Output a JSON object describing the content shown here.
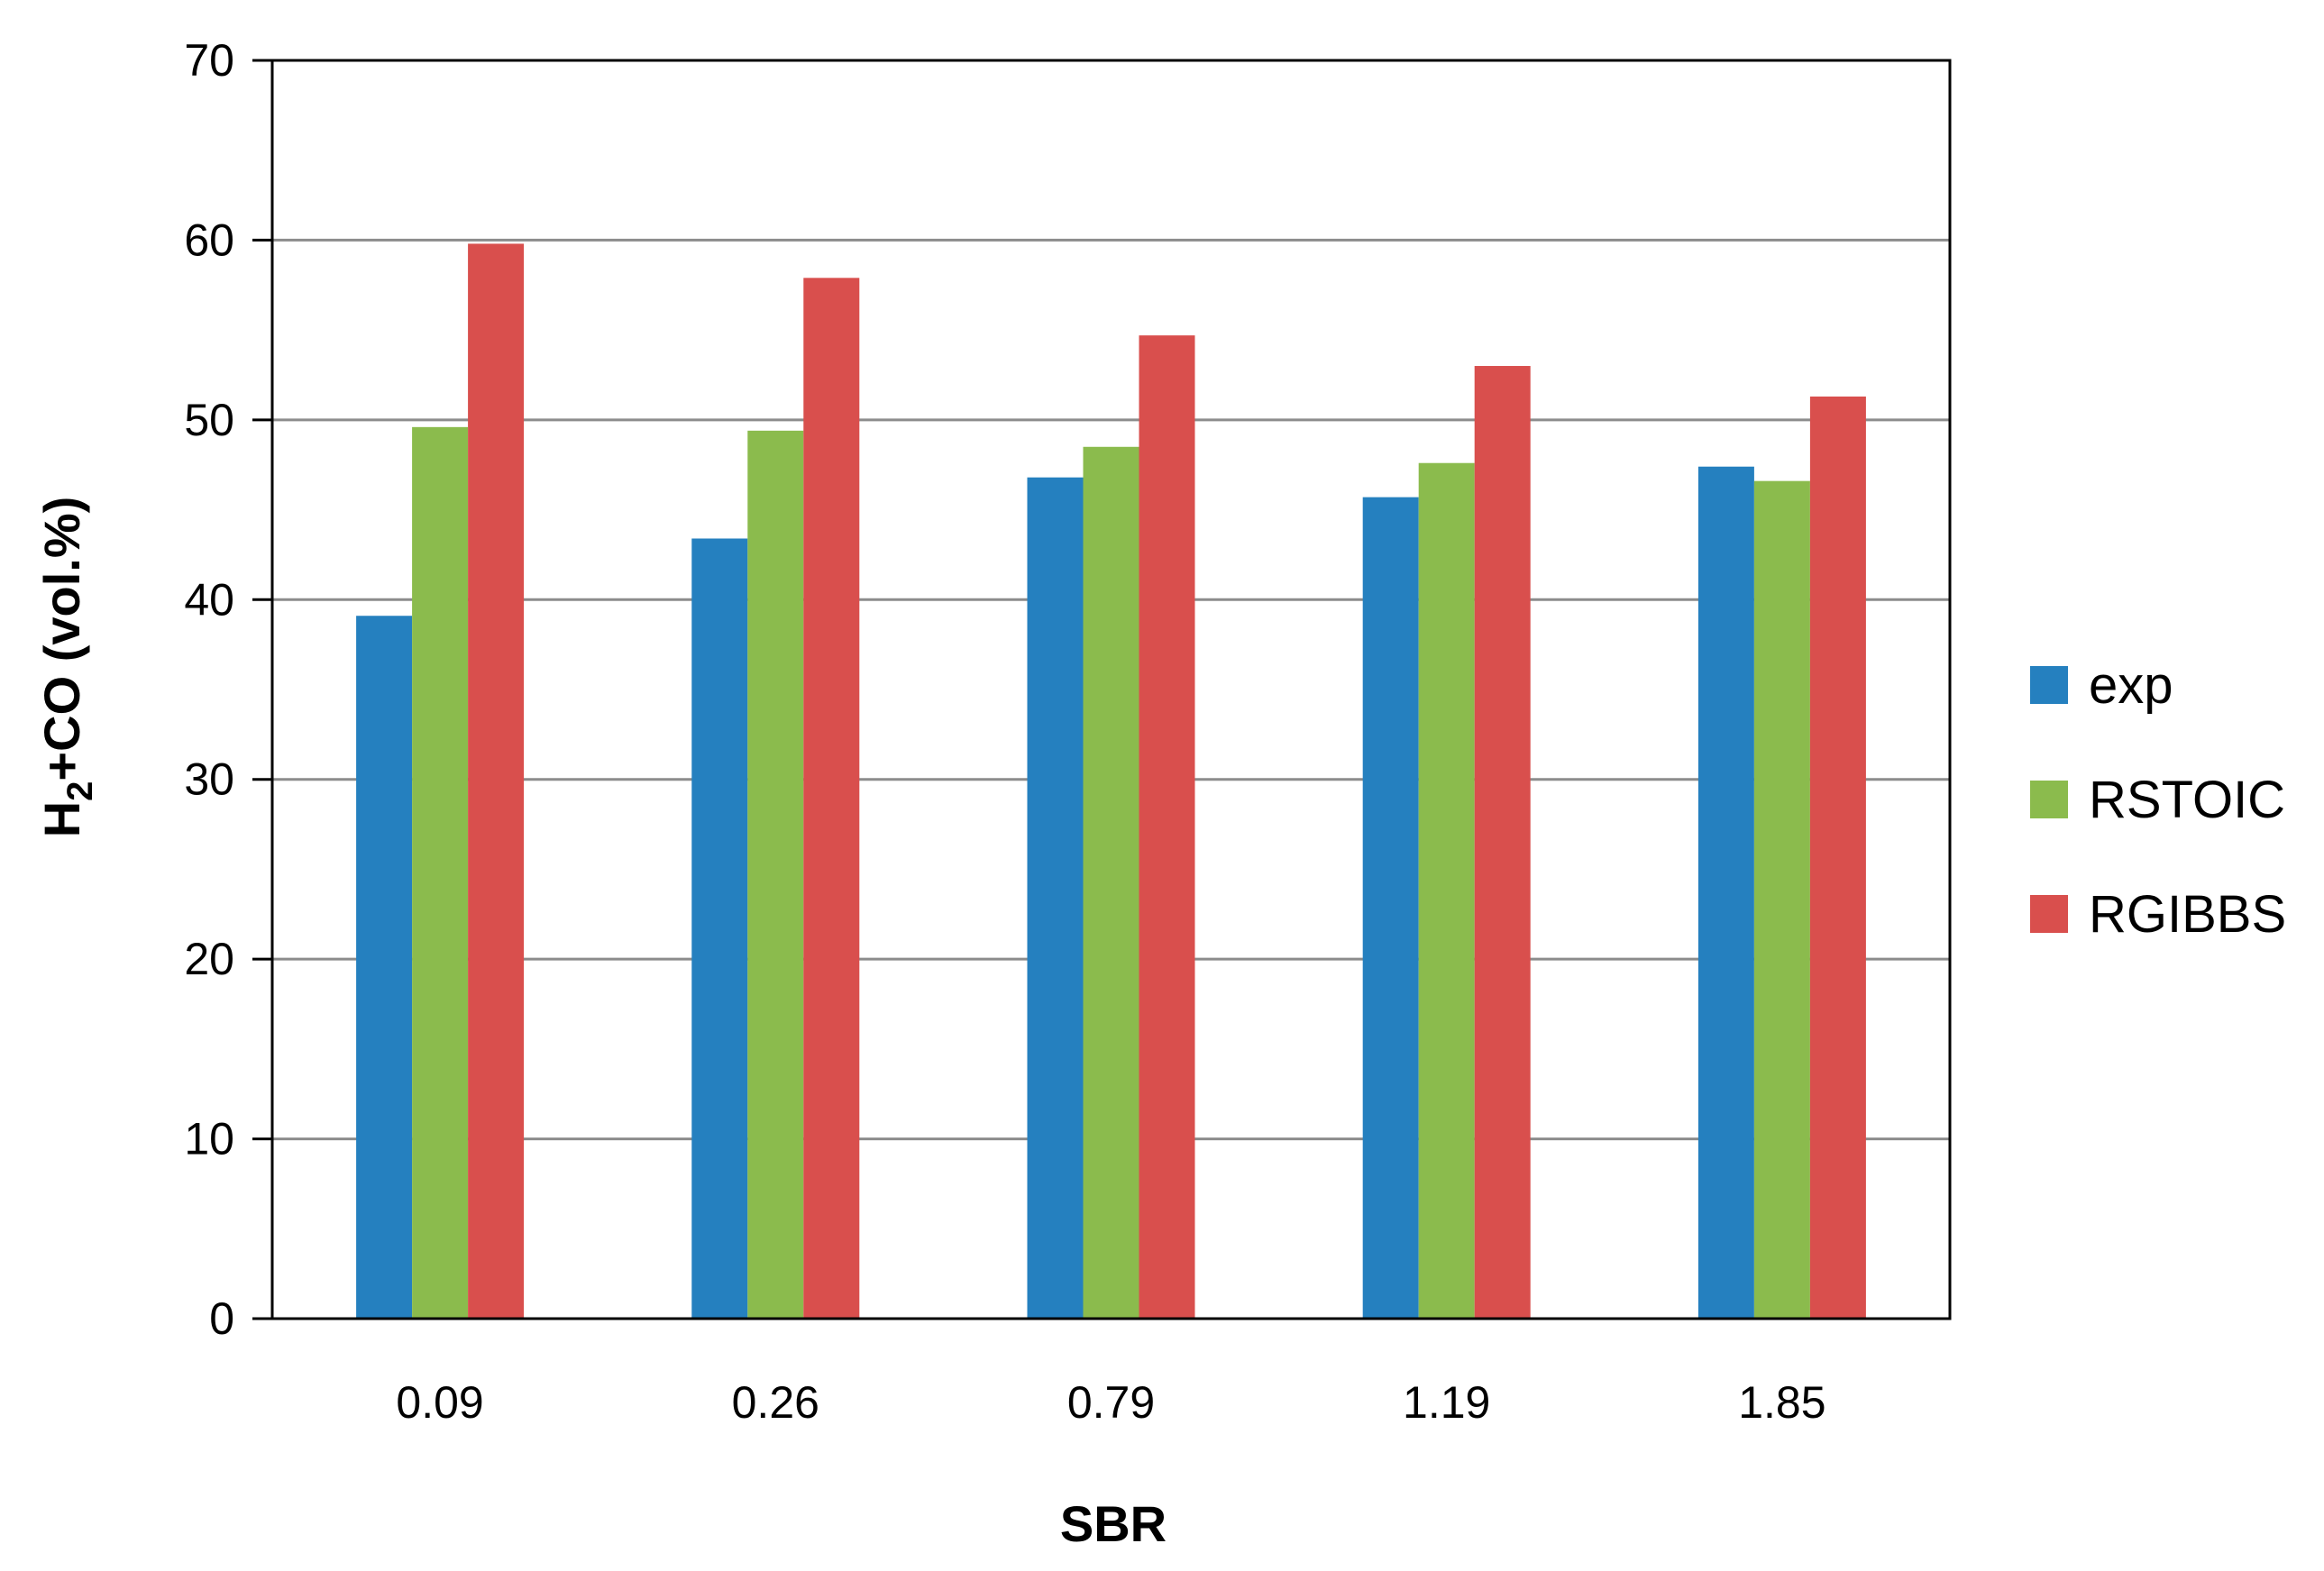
{
  "chart_data": {
    "type": "bar",
    "title": "",
    "xlabel": "SBR",
    "ylabel_parts": [
      "H",
      "2",
      "+CO (vol.%)"
    ],
    "categories": [
      "0.09",
      "0.26",
      "0.79",
      "1.19",
      "1.85"
    ],
    "series": [
      {
        "name": "exp",
        "color": "#2580bf",
        "values": [
          39.1,
          43.4,
          46.8,
          45.7,
          47.4
        ]
      },
      {
        "name": "RSTOIC",
        "color": "#8bbb4d",
        "values": [
          49.6,
          49.4,
          48.5,
          47.6,
          46.6
        ]
      },
      {
        "name": "RGIBBS",
        "color": "#d94f4d",
        "values": [
          59.8,
          57.9,
          54.7,
          53.0,
          51.3
        ]
      }
    ],
    "ylim": [
      0,
      70
    ],
    "yticks": [
      "0",
      "10",
      "20",
      "30",
      "40",
      "50",
      "60",
      "70"
    ],
    "grid": true,
    "legend_position": "right"
  }
}
